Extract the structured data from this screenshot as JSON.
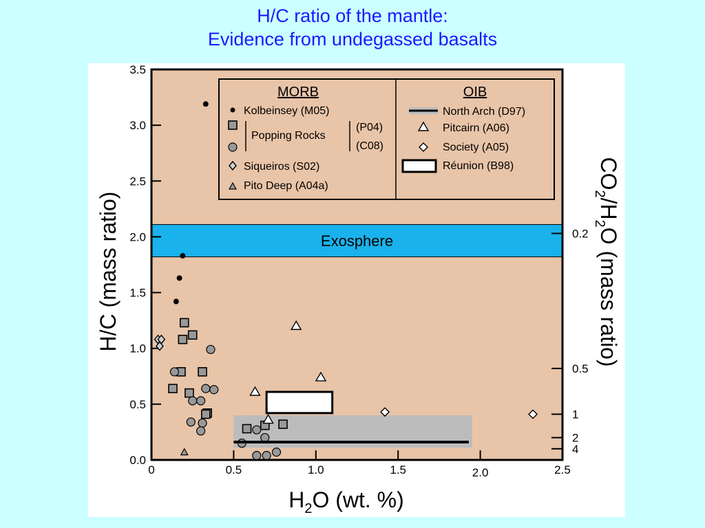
{
  "title": {
    "line1": "H/C ratio of the mantle:",
    "line2": "Evidence from undegassed basalts"
  },
  "colors": {
    "slide_bg": "#ccffff",
    "title": "#1a1aff",
    "plot_bg": "#e8c4a8",
    "exosphere": "#1ab2ec",
    "shade": "#bcbcbc",
    "marker_gray": "#999999"
  },
  "chart_data": {
    "type": "scatter",
    "xlabel_main": "H",
    "xlabel_sub": "2",
    "xlabel_rest": "O (wt. %)",
    "ylabel": "H/C (mass ratio)",
    "y2label_parts": [
      "CO",
      "2",
      "/H",
      "2",
      "O (mass ratio)"
    ],
    "xlim": [
      0,
      2.5
    ],
    "ylim": [
      0,
      3.5
    ],
    "xticks": [
      {
        "value": 0,
        "label": "0"
      },
      {
        "value": 0.5,
        "label": "0.5"
      },
      {
        "value": 1.0,
        "label": "1.0"
      },
      {
        "value": 1.5,
        "label": "1.5"
      },
      {
        "value": 2.0,
        "label": "2.0"
      },
      {
        "value": 2.5,
        "label": "2.5"
      }
    ],
    "yticks": [
      {
        "value": 0,
        "label": "0.0"
      },
      {
        "value": 0.5,
        "label": "0.5"
      },
      {
        "value": 1.0,
        "label": "1.0"
      },
      {
        "value": 1.5,
        "label": "1.5"
      },
      {
        "value": 2.0,
        "label": "2.0"
      },
      {
        "value": 2.5,
        "label": "2.5"
      },
      {
        "value": 3.0,
        "label": "3.0"
      },
      {
        "value": 3.5,
        "label": "3.5"
      }
    ],
    "y2ticks": [
      {
        "hc": 2.03,
        "label": "0.2"
      },
      {
        "hc": 0.82,
        "label": "0.5"
      },
      {
        "hc": 0.41,
        "label": "1"
      },
      {
        "hc": 0.2,
        "label": "2"
      },
      {
        "hc": 0.1,
        "label": "4"
      }
    ],
    "exosphere": {
      "label": "Exosphere",
      "y_range": [
        1.82,
        2.11
      ]
    },
    "shaded_region": {
      "x_range": [
        0.5,
        1.95
      ],
      "y_range": [
        0.11,
        0.4
      ]
    },
    "legend": {
      "morb_header": "MORB",
      "oib_header": "OIB",
      "kolbeinsey": "Kolbeinsey (M05)",
      "popping_rocks": "Popping Rocks",
      "p04": "(P04)",
      "c08": "(C08)",
      "siqueiros": "Siqueiros (S02)",
      "pito_deep": "Pito Deep (A04a)",
      "north_arch": "North Arch (D97)",
      "pitcairn": "Pitcairn (A06)",
      "society": "Society (A05)",
      "reunion": "Réunion (B98)"
    },
    "series": [
      {
        "name": "Kolbeinsey (M05)",
        "marker": "dot",
        "points": [
          [
            0.33,
            3.19
          ],
          [
            0.19,
            1.83
          ],
          [
            0.17,
            1.63
          ],
          [
            0.15,
            1.42
          ]
        ]
      },
      {
        "name": "Popping Rocks (P04)",
        "marker": "square",
        "points": [
          [
            0.2,
            1.23
          ],
          [
            0.25,
            1.12
          ],
          [
            0.19,
            1.08
          ],
          [
            0.31,
            0.79
          ],
          [
            0.18,
            0.79
          ],
          [
            0.13,
            0.64
          ],
          [
            0.23,
            0.6
          ],
          [
            0.34,
            0.42
          ],
          [
            0.33,
            0.41
          ],
          [
            0.58,
            0.28
          ],
          [
            0.69,
            0.31
          ],
          [
            0.8,
            0.32
          ]
        ]
      },
      {
        "name": "Popping Rocks (C08)",
        "marker": "circle",
        "points": [
          [
            0.36,
            0.99
          ],
          [
            0.14,
            0.79
          ],
          [
            0.3,
            0.53
          ],
          [
            0.25,
            0.53
          ],
          [
            0.33,
            0.64
          ],
          [
            0.38,
            0.63
          ],
          [
            0.24,
            0.34
          ],
          [
            0.31,
            0.33
          ],
          [
            0.3,
            0.26
          ],
          [
            0.64,
            0.27
          ],
          [
            0.69,
            0.2
          ],
          [
            0.55,
            0.15
          ],
          [
            0.64,
            0.04
          ],
          [
            0.7,
            0.04
          ],
          [
            0.76,
            0.07
          ]
        ]
      },
      {
        "name": "Siqueiros (S02)",
        "marker": "diamond",
        "points": [
          [
            0.04,
            1.08
          ],
          [
            0.06,
            1.08
          ],
          [
            0.05,
            1.02
          ]
        ]
      },
      {
        "name": "Pito Deep (A04a)",
        "marker": "small-triangle",
        "points": [
          [
            0.2,
            0.07
          ]
        ]
      },
      {
        "name": "Pitcairn (A06)",
        "marker": "triangle",
        "points": [
          [
            0.88,
            1.2
          ],
          [
            1.03,
            0.74
          ],
          [
            0.63,
            0.61
          ],
          [
            0.71,
            0.36
          ]
        ]
      },
      {
        "name": "Society (A05)",
        "marker": "open-diamond",
        "points": [
          [
            1.42,
            0.43
          ],
          [
            2.32,
            0.41
          ]
        ]
      },
      {
        "name": "North Arch (D97)",
        "marker": "line",
        "line": {
          "x": [
            0.5,
            1.93
          ],
          "y": 0.16
        }
      },
      {
        "name": "Réunion (B98)",
        "marker": "box",
        "box": {
          "x": [
            0.7,
            1.1
          ],
          "y": [
            0.42,
            0.61
          ]
        }
      }
    ]
  }
}
